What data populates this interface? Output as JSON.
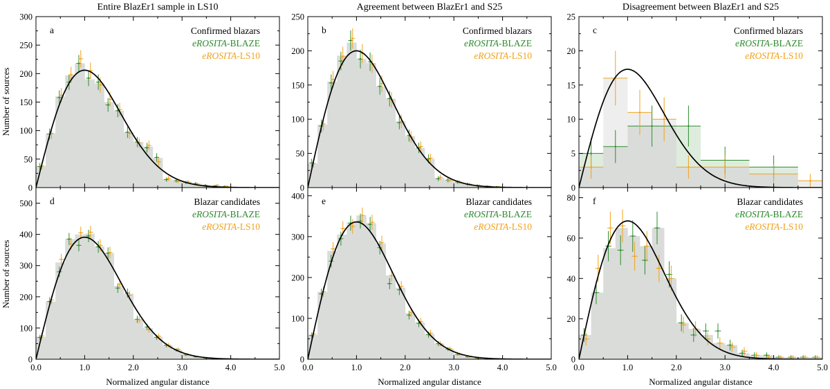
{
  "figure": {
    "column_titles": [
      "Entire BlazEr1 sample in LS10",
      "Agreement between BlazEr1 and S25",
      "Disagreement between BlazEr1 and S25"
    ],
    "x_axis_label": "Normalized angular distance",
    "y_axis_label": "Number of sources",
    "legend_italic_prefix": "eROSITA",
    "colors": {
      "hist_fill": "#d9dcd9",
      "hist_fill_light": "#eeeeee",
      "blaze": "#2e8b2e",
      "blaze_fill": "#d3e6d3",
      "ls10": "#f0a21a",
      "ls10_fill": "#fbecd2",
      "curve": "#000000"
    }
  },
  "chart_data": [
    {
      "type": "bar",
      "panel": "a",
      "group": "Confirmed blazars",
      "legend": [
        "Confirmed blazars",
        "eROSITA-BLAZE",
        "eROSITA-LS10"
      ],
      "xlim": [
        0,
        5
      ],
      "ylim": [
        0,
        300
      ],
      "xticks": [
        "0.0",
        "1.0",
        "2.0",
        "3.0",
        "4.0",
        "5.0"
      ],
      "yticks": [
        0,
        50,
        100,
        150,
        200,
        250,
        300
      ],
      "bin_width": 0.2,
      "bin_starts": [
        0,
        0.2,
        0.4,
        0.6,
        0.8,
        1.0,
        1.2,
        1.4,
        1.6,
        1.8,
        2.0,
        2.2,
        2.4,
        2.6,
        2.8,
        3.0,
        3.2,
        3.4,
        3.6,
        3.8
      ],
      "counts": [
        38,
        95,
        160,
        197,
        218,
        190,
        183,
        150,
        135,
        97,
        80,
        72,
        52,
        15,
        12,
        10,
        7,
        4,
        3,
        2
      ],
      "series": [
        {
          "name": "eROSITA-BLAZE",
          "x": [
            0.1,
            0.3,
            0.5,
            0.7,
            0.9,
            1.1,
            1.3,
            1.5,
            1.7,
            1.9,
            2.1,
            2.3,
            2.5,
            2.7,
            2.9,
            3.1,
            3.3,
            3.5,
            3.7,
            3.9
          ],
          "y": [
            37,
            94,
            158,
            185,
            218,
            192,
            185,
            145,
            135,
            97,
            80,
            70,
            53,
            14,
            12,
            9,
            7,
            4,
            3,
            2
          ]
        },
        {
          "name": "eROSITA-LS10",
          "x": [
            0.1,
            0.3,
            0.5,
            0.7,
            0.9,
            1.1,
            1.3,
            1.5,
            1.7,
            1.9,
            2.1,
            2.3,
            2.5,
            2.7,
            2.9,
            3.1,
            3.3,
            3.5,
            3.7,
            3.9
          ],
          "y": [
            38,
            95,
            162,
            198,
            226,
            205,
            180,
            155,
            137,
            95,
            78,
            74,
            45,
            16,
            11,
            10,
            6,
            3,
            4,
            2
          ]
        }
      ],
      "curve": {
        "form": "rayleigh",
        "peak_x": 1.0,
        "peak_y": 206
      }
    },
    {
      "type": "bar",
      "panel": "b",
      "group": "Confirmed blazars",
      "legend": [
        "Confirmed blazars",
        "eROSITA-BLAZE",
        "eROSITA-LS10"
      ],
      "xlim": [
        0,
        5
      ],
      "ylim": [
        0,
        250
      ],
      "xticks": [
        "0.0",
        "1.0",
        "2.0",
        "3.0",
        "4.0",
        "5.0"
      ],
      "yticks": [
        0,
        50,
        100,
        150,
        200,
        250
      ],
      "bin_width": 0.2,
      "bin_starts": [
        0,
        0.2,
        0.4,
        0.6,
        0.8,
        1.0,
        1.2,
        1.4,
        1.6,
        1.8,
        2.0,
        2.2,
        2.4,
        2.6,
        2.8,
        3.0,
        3.2,
        3.4,
        3.6,
        3.8
      ],
      "counts": [
        35,
        92,
        155,
        193,
        212,
        188,
        182,
        148,
        130,
        97,
        75,
        58,
        42,
        14,
        11,
        8,
        5,
        3,
        2,
        1
      ],
      "series": [
        {
          "name": "eROSITA-BLAZE",
          "x": [
            0.1,
            0.3,
            0.5,
            0.7,
            0.9,
            1.1,
            1.3,
            1.5,
            1.7,
            1.9,
            2.1,
            2.3,
            2.5,
            2.7,
            2.9,
            3.1,
            3.3,
            3.5,
            3.7,
            3.9
          ],
          "y": [
            36,
            90,
            153,
            185,
            215,
            188,
            184,
            148,
            130,
            95,
            76,
            58,
            42,
            13,
            11,
            8,
            5,
            3,
            2,
            1
          ]
        },
        {
          "name": "eROSITA-LS10",
          "x": [
            0.1,
            0.3,
            0.5,
            0.7,
            0.9,
            1.1,
            1.3,
            1.5,
            1.7,
            1.9,
            2.1,
            2.3,
            2.5,
            2.7,
            2.9,
            3.1,
            3.3,
            3.5,
            3.7,
            3.9
          ],
          "y": [
            35,
            93,
            158,
            192,
            218,
            196,
            181,
            152,
            128,
            97,
            74,
            60,
            43,
            15,
            11,
            8,
            5,
            3,
            2,
            1
          ]
        }
      ],
      "curve": {
        "form": "rayleigh",
        "peak_x": 1.0,
        "peak_y": 200
      }
    },
    {
      "type": "bar",
      "panel": "c",
      "group": "Confirmed blazars",
      "legend": [
        "Confirmed blazars",
        "eROSITA-BLAZE",
        "eROSITA-LS10"
      ],
      "xlim": [
        0,
        5
      ],
      "ylim": [
        0,
        25
      ],
      "xticks": [
        "0.0",
        "1.0",
        "2.0",
        "3.0",
        "4.0",
        "5.0"
      ],
      "yticks": [
        0,
        5,
        10,
        15,
        20,
        25
      ],
      "bin_edges": [
        0,
        0.5,
        1.0,
        1.5,
        2.0,
        2.5,
        3.5,
        4.5,
        5.0
      ],
      "counts": [
        5,
        16,
        10,
        10,
        9,
        4,
        3,
        1
      ],
      "series": [
        {
          "name": "eROSITA-BLAZE",
          "edges": [
            0,
            0.5,
            1.0,
            2.0,
            2.5,
            3.5,
            4.5
          ],
          "y": [
            5,
            6,
            9,
            9,
            4,
            3
          ],
          "x": [
            0.25,
            0.75,
            1.5,
            2.25,
            3.0,
            4.0
          ],
          "yerr": [
            2.2,
            2.4,
            3.0,
            3.0,
            2.0,
            1.7
          ]
        },
        {
          "name": "eROSITA-LS10",
          "edges": [
            0,
            0.5,
            1.0,
            1.5,
            2.0,
            2.5,
            3.5,
            4.5,
            5.0
          ],
          "y": [
            3,
            16,
            11,
            10,
            3,
            3,
            2,
            1
          ],
          "x": [
            0.25,
            0.75,
            1.25,
            1.75,
            2.25,
            3.0,
            4.0,
            4.75
          ],
          "yerr": [
            1.7,
            4.0,
            3.3,
            3.2,
            1.7,
            1.7,
            1.4,
            1.0
          ]
        }
      ],
      "curve": {
        "form": "rayleigh",
        "peak_x": 1.0,
        "peak_y": 17.3
      }
    },
    {
      "type": "bar",
      "panel": "d",
      "group": "Blazar candidates",
      "legend": [
        "Blazar candidates",
        "eROSITA-BLAZE",
        "eROSITA-LS10"
      ],
      "xlim": [
        0,
        5
      ],
      "ylim": [
        0,
        550
      ],
      "xticks": [
        "0.0",
        "1.0",
        "2.0",
        "3.0",
        "4.0",
        "5.0"
      ],
      "yticks": [
        0,
        100,
        200,
        300,
        400,
        500
      ],
      "bin_width": 0.2,
      "bin_starts": [
        0,
        0.2,
        0.4,
        0.6,
        0.8,
        1.0,
        1.2,
        1.4,
        1.6,
        1.8,
        2.0,
        2.2,
        2.4,
        2.6,
        2.8,
        3.0,
        3.2,
        3.4,
        3.6,
        3.8
      ],
      "counts": [
        72,
        185,
        310,
        385,
        400,
        402,
        362,
        340,
        235,
        210,
        128,
        100,
        72,
        45,
        30,
        15,
        8,
        4,
        2,
        1
      ],
      "series": [
        {
          "name": "eROSITA-BLAZE",
          "x": [
            0.1,
            0.3,
            0.5,
            0.7,
            0.9,
            1.1,
            1.3,
            1.5,
            1.7,
            1.9,
            2.1,
            2.3,
            2.5,
            2.7,
            2.9,
            3.1,
            3.3,
            3.5,
            3.7,
            3.9
          ],
          "y": [
            70,
            185,
            280,
            385,
            365,
            395,
            360,
            340,
            228,
            212,
            128,
            103,
            70,
            45,
            30,
            14,
            8,
            4,
            2,
            1
          ]
        },
        {
          "name": "eROSITA-LS10",
          "x": [
            0.1,
            0.3,
            0.5,
            0.7,
            0.9,
            1.1,
            1.3,
            1.5,
            1.7,
            1.9,
            2.1,
            2.3,
            2.5,
            2.7,
            2.9,
            3.1,
            3.3,
            3.5,
            3.7,
            3.9
          ],
          "y": [
            75,
            190,
            320,
            370,
            405,
            407,
            365,
            342,
            240,
            205,
            126,
            95,
            74,
            45,
            32,
            15,
            8,
            4,
            2,
            1
          ]
        }
      ],
      "curve": {
        "form": "rayleigh",
        "peak_x": 1.0,
        "peak_y": 391
      }
    },
    {
      "type": "bar",
      "panel": "e",
      "group": "Blazar candidates",
      "legend": [
        "Blazar candidates",
        "eROSITA-BLAZE",
        "eROSITA-LS10"
      ],
      "xlim": [
        0,
        5
      ],
      "ylim": [
        0,
        420
      ],
      "xticks": [
        "0.0",
        "1.0",
        "2.0",
        "3.0",
        "4.0",
        "5.0"
      ],
      "yticks": [
        0,
        100,
        200,
        300,
        400
      ],
      "bin_width": 0.2,
      "bin_starts": [
        0,
        0.2,
        0.4,
        0.6,
        0.8,
        1.0,
        1.2,
        1.4,
        1.6,
        1.8,
        2.0,
        2.2,
        2.4,
        2.6,
        2.8,
        3.0,
        3.2,
        3.4,
        3.6,
        3.8
      ],
      "counts": [
        60,
        165,
        265,
        305,
        335,
        352,
        333,
        283,
        205,
        175,
        113,
        90,
        62,
        38,
        25,
        12,
        6,
        3,
        2,
        1
      ],
      "series": [
        {
          "name": "eROSITA-BLAZE",
          "x": [
            0.1,
            0.3,
            0.5,
            0.7,
            0.9,
            1.1,
            1.3,
            1.5,
            1.7,
            1.9,
            2.1,
            2.3,
            2.5,
            2.7,
            2.9,
            3.1,
            3.3,
            3.5,
            3.7,
            3.9
          ],
          "y": [
            58,
            160,
            240,
            295,
            333,
            338,
            330,
            273,
            185,
            170,
            108,
            88,
            60,
            38,
            25,
            12,
            6,
            3,
            2,
            1
          ]
        },
        {
          "name": "eROSITA-LS10",
          "x": [
            0.1,
            0.3,
            0.5,
            0.7,
            0.9,
            1.1,
            1.3,
            1.5,
            1.7,
            1.9,
            2.1,
            2.3,
            2.5,
            2.7,
            2.9,
            3.1,
            3.3,
            3.5,
            3.7,
            3.9
          ],
          "y": [
            62,
            165,
            270,
            320,
            325,
            352,
            335,
            285,
            205,
            178,
            114,
            92,
            64,
            38,
            26,
            12,
            6,
            3,
            2,
            1
          ]
        }
      ],
      "curve": {
        "form": "rayleigh",
        "peak_x": 1.0,
        "peak_y": 336
      }
    },
    {
      "type": "bar",
      "panel": "f",
      "group": "Blazar candidates",
      "legend": [
        "Blazar candidates",
        "eROSITA-BLAZE",
        "eROSITA-LS10"
      ],
      "xlim": [
        0,
        5
      ],
      "ylim": [
        0,
        85
      ],
      "xticks": [
        "0.0",
        "1.0",
        "2.0",
        "3.0",
        "4.0",
        "5.0"
      ],
      "yticks": [
        0,
        20,
        40,
        60,
        80
      ],
      "bin_width": 0.25,
      "bin_starts": [
        0,
        0.25,
        0.5,
        0.75,
        1.0,
        1.25,
        1.5,
        1.75,
        2.0,
        2.25,
        2.5,
        2.75,
        3.0,
        3.25,
        3.5,
        3.75,
        4.0,
        4.25,
        4.5,
        4.75
      ],
      "counts": [
        12,
        33,
        55,
        65,
        61,
        56,
        65,
        40,
        18,
        15,
        12,
        8,
        7,
        3,
        2,
        2,
        1,
        1,
        1,
        1
      ],
      "series": [
        {
          "name": "eROSITA-BLAZE",
          "x": [
            0.125,
            0.375,
            0.625,
            0.875,
            1.125,
            1.375,
            1.625,
            1.875,
            2.125,
            2.375,
            2.625,
            2.875,
            3.125,
            3.375,
            3.625,
            3.875,
            4.125,
            4.375,
            4.625,
            4.875
          ],
          "y": [
            12,
            33,
            56,
            54,
            61,
            49,
            65,
            42,
            18,
            12,
            14,
            14,
            7,
            3,
            2,
            2,
            1,
            1,
            1,
            1
          ]
        },
        {
          "name": "eROSITA-LS10",
          "x": [
            0.125,
            0.375,
            0.625,
            0.875,
            1.125,
            1.375,
            1.625,
            1.875,
            2.125,
            2.375,
            2.625,
            2.875,
            3.125,
            3.375,
            3.625,
            3.875,
            4.125,
            4.375,
            4.625,
            4.875
          ],
          "y": [
            10,
            45,
            65,
            66,
            51,
            56,
            45,
            40,
            17,
            15,
            10,
            8,
            6,
            4,
            2,
            1,
            1,
            1,
            1,
            1
          ]
        }
      ],
      "curve": {
        "form": "rayleigh",
        "peak_x": 1.0,
        "peak_y": 68.5
      }
    }
  ]
}
